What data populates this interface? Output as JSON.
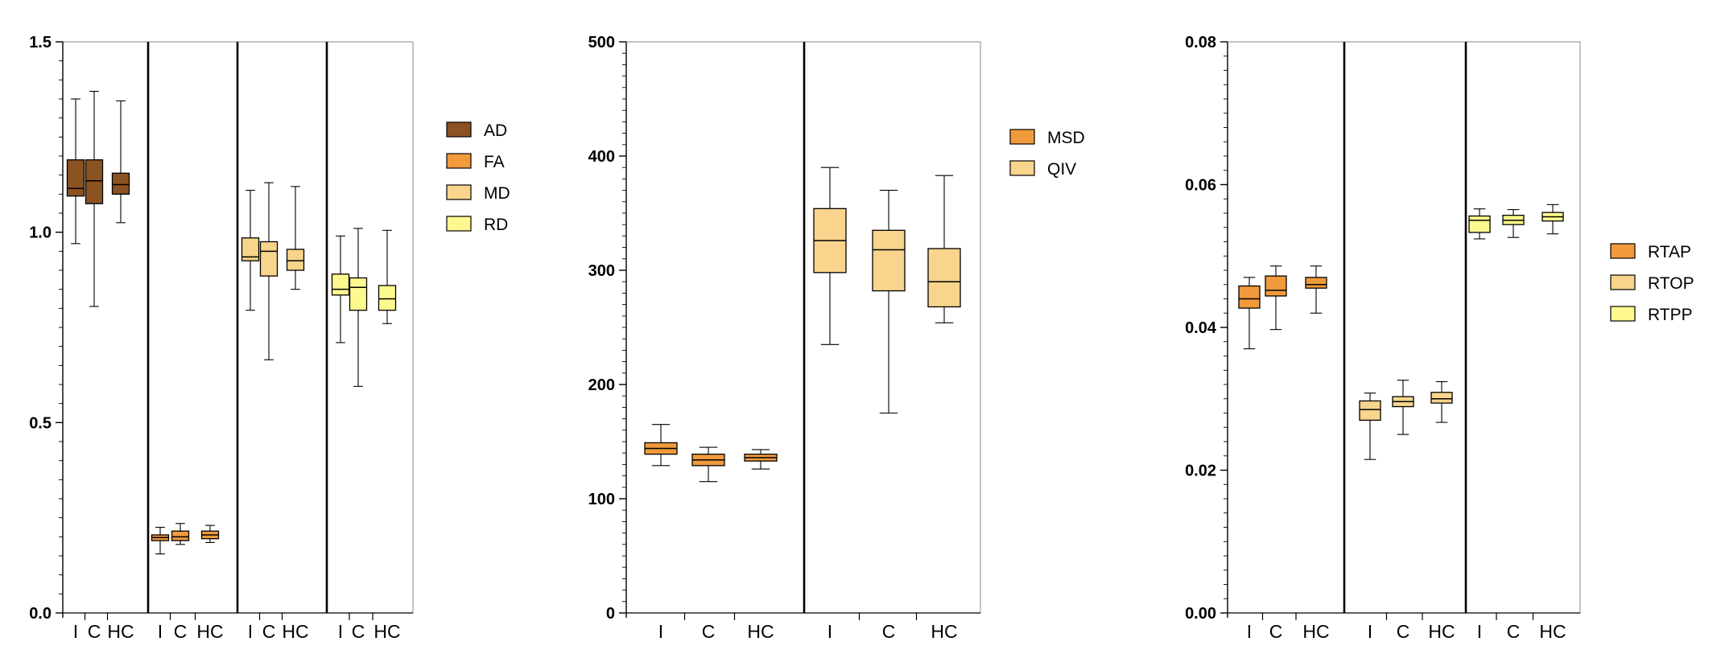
{
  "chart_data": [
    {
      "type": "box",
      "ylim": [
        0,
        1.5
      ],
      "y_ticks": [
        "0.0",
        "0.5",
        "1.0",
        "1.5"
      ],
      "legend_position": "right",
      "legend": [
        {
          "label": "AD",
          "color": "#8B5222"
        },
        {
          "label": "FA",
          "color": "#F09A3C"
        },
        {
          "label": "MD",
          "color": "#F8D48C"
        },
        {
          "label": "RD",
          "color": "#FDF98F"
        }
      ],
      "groups": [
        {
          "series": "AD",
          "color": "#8B5222",
          "boxes": [
            {
              "label": "I",
              "min": 0.97,
              "q1": 1.095,
              "median": 1.115,
              "q3": 1.19,
              "max": 1.35
            },
            {
              "label": "C",
              "min": 0.805,
              "q1": 1.075,
              "median": 1.135,
              "q3": 1.19,
              "max": 1.37
            },
            {
              "label": "HC",
              "min": 1.025,
              "q1": 1.1,
              "median": 1.125,
              "q3": 1.155,
              "max": 1.345
            }
          ]
        },
        {
          "series": "FA",
          "color": "#F09A3C",
          "boxes": [
            {
              "label": "I",
              "min": 0.155,
              "q1": 0.19,
              "median": 0.198,
              "q3": 0.205,
              "max": 0.225
            },
            {
              "label": "C",
              "min": 0.18,
              "q1": 0.19,
              "median": 0.2,
              "q3": 0.215,
              "max": 0.235
            },
            {
              "label": "HC",
              "min": 0.185,
              "q1": 0.195,
              "median": 0.205,
              "q3": 0.215,
              "max": 0.23
            }
          ]
        },
        {
          "series": "MD",
          "color": "#F8D48C",
          "boxes": [
            {
              "label": "I",
              "min": 0.795,
              "q1": 0.925,
              "median": 0.935,
              "q3": 0.985,
              "max": 1.11
            },
            {
              "label": "C",
              "min": 0.665,
              "q1": 0.885,
              "median": 0.95,
              "q3": 0.975,
              "max": 1.13
            },
            {
              "label": "HC",
              "min": 0.85,
              "q1": 0.9,
              "median": 0.925,
              "q3": 0.955,
              "max": 1.12
            }
          ]
        },
        {
          "series": "RD",
          "color": "#FDF98F",
          "boxes": [
            {
              "label": "I",
              "min": 0.71,
              "q1": 0.835,
              "median": 0.85,
              "q3": 0.89,
              "max": 0.99
            },
            {
              "label": "C",
              "min": 0.595,
              "q1": 0.795,
              "median": 0.855,
              "q3": 0.88,
              "max": 1.01
            },
            {
              "label": "HC",
              "min": 0.76,
              "q1": 0.795,
              "median": 0.825,
              "q3": 0.86,
              "max": 1.005
            }
          ]
        }
      ]
    },
    {
      "type": "box",
      "ylim": [
        0,
        500
      ],
      "y_ticks": [
        "0",
        "100",
        "200",
        "300",
        "400",
        "500"
      ],
      "legend_position": "right",
      "legend": [
        {
          "label": "MSD",
          "color": "#F09A3C"
        },
        {
          "label": "QIV",
          "color": "#F8D48C"
        }
      ],
      "groups": [
        {
          "series": "MSD",
          "color": "#F09A3C",
          "boxes": [
            {
              "label": "I",
              "min": 129,
              "q1": 139,
              "median": 144,
              "q3": 149,
              "max": 165
            },
            {
              "label": "C",
              "min": 115,
              "q1": 129,
              "median": 134,
              "q3": 139,
              "max": 145
            },
            {
              "label": "HC",
              "min": 126,
              "q1": 133,
              "median": 136,
              "q3": 139,
              "max": 143
            }
          ]
        },
        {
          "series": "QIV",
          "color": "#F8D48C",
          "boxes": [
            {
              "label": "I",
              "min": 235,
              "q1": 298,
              "median": 326,
              "q3": 354,
              "max": 390
            },
            {
              "label": "C",
              "min": 175,
              "q1": 282,
              "median": 318,
              "q3": 335,
              "max": 370
            },
            {
              "label": "HC",
              "min": 254,
              "q1": 268,
              "median": 290,
              "q3": 319,
              "max": 383
            }
          ]
        }
      ]
    },
    {
      "type": "box",
      "ylim": [
        0,
        0.08
      ],
      "y_ticks": [
        "0.00",
        "0.02",
        "0.04",
        "0.06",
        "0.08"
      ],
      "legend_position": "right",
      "legend": [
        {
          "label": "RTAP",
          "color": "#F09A3C"
        },
        {
          "label": "RTOP",
          "color": "#F8D48C"
        },
        {
          "label": "RTPP",
          "color": "#FDF98F"
        }
      ],
      "groups": [
        {
          "series": "RTAP",
          "color": "#F09A3C",
          "boxes": [
            {
              "label": "I",
              "min": 0.037,
              "q1": 0.0427,
              "median": 0.044,
              "q3": 0.0458,
              "max": 0.047
            },
            {
              "label": "C",
              "min": 0.0397,
              "q1": 0.0444,
              "median": 0.0452,
              "q3": 0.0472,
              "max": 0.0486
            },
            {
              "label": "HC",
              "min": 0.042,
              "q1": 0.0455,
              "median": 0.046,
              "q3": 0.047,
              "max": 0.0486
            }
          ]
        },
        {
          "series": "RTOP",
          "color": "#F8D48C",
          "boxes": [
            {
              "label": "I",
              "min": 0.0215,
              "q1": 0.027,
              "median": 0.0285,
              "q3": 0.0297,
              "max": 0.0308
            },
            {
              "label": "C",
              "min": 0.025,
              "q1": 0.0289,
              "median": 0.0296,
              "q3": 0.0303,
              "max": 0.0326
            },
            {
              "label": "HC",
              "min": 0.0267,
              "q1": 0.0294,
              "median": 0.03,
              "q3": 0.0309,
              "max": 0.0324
            }
          ]
        },
        {
          "series": "RTPP",
          "color": "#FDF98F",
          "boxes": [
            {
              "label": "I",
              "min": 0.0524,
              "q1": 0.0533,
              "median": 0.055,
              "q3": 0.0556,
              "max": 0.0566
            },
            {
              "label": "C",
              "min": 0.0526,
              "q1": 0.0544,
              "median": 0.055,
              "q3": 0.0557,
              "max": 0.0565
            },
            {
              "label": "HC",
              "min": 0.0531,
              "q1": 0.0549,
              "median": 0.0555,
              "q3": 0.0561,
              "max": 0.0572
            }
          ]
        }
      ]
    }
  ]
}
